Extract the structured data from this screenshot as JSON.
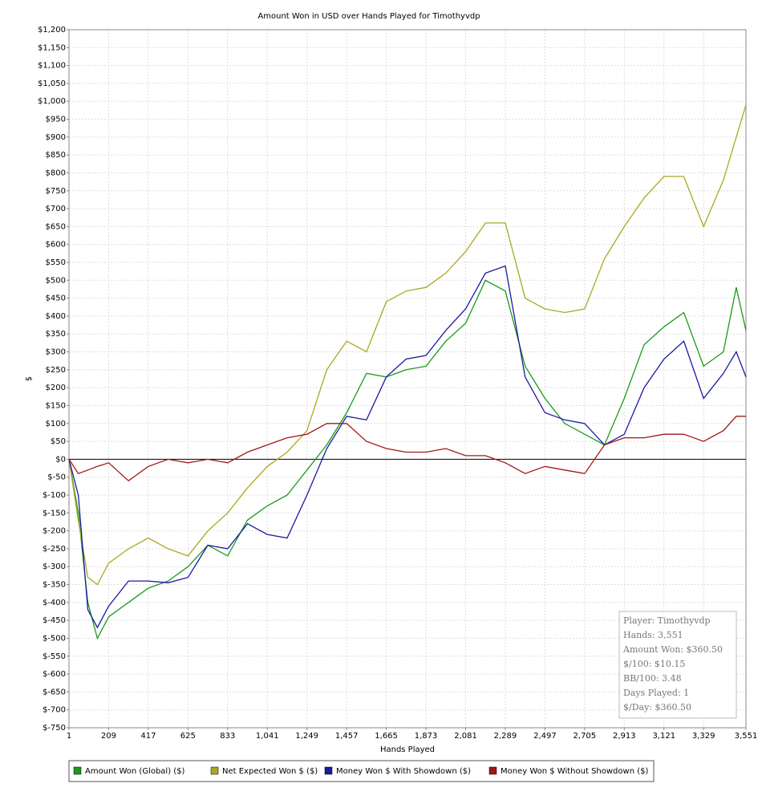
{
  "chart_data": {
    "type": "line",
    "title": "Amount Won in USD over Hands Played for Timothyvdp",
    "x_label": "Hands Played",
    "y_label": "$",
    "x": [
      1,
      50,
      100,
      150,
      209,
      313,
      417,
      521,
      625,
      729,
      833,
      937,
      1041,
      1145,
      1249,
      1353,
      1457,
      1561,
      1665,
      1769,
      1873,
      1977,
      2081,
      2185,
      2289,
      2393,
      2497,
      2601,
      2705,
      2809,
      2913,
      3017,
      3121,
      3225,
      3329,
      3433,
      3500,
      3551
    ],
    "series": [
      {
        "name": "Amount Won (Global) ($)",
        "color": "#1a9a1a",
        "values": [
          0,
          -150,
          -400,
          -500,
          -440,
          -400,
          -360,
          -340,
          -300,
          -240,
          -270,
          -170,
          -130,
          -100,
          -30,
          40,
          130,
          240,
          230,
          250,
          260,
          330,
          380,
          500,
          470,
          260,
          170,
          100,
          70,
          40,
          170,
          320,
          370,
          410,
          260,
          300,
          480,
          360
        ]
      },
      {
        "name": "Net Expected Won $ ($)",
        "color": "#aaa820",
        "values": [
          0,
          -170,
          -330,
          -350,
          -290,
          -250,
          -220,
          -250,
          -270,
          -200,
          -150,
          -80,
          -20,
          20,
          80,
          250,
          330,
          300,
          440,
          470,
          480,
          520,
          580,
          660,
          660,
          450,
          420,
          410,
          420,
          560,
          650,
          730,
          790,
          790,
          650,
          780,
          900,
          990
        ]
      },
      {
        "name": "Money Won $ With Showdown ($)",
        "color": "#1a1aa0",
        "values": [
          0,
          -100,
          -420,
          -470,
          -410,
          -340,
          -340,
          -345,
          -330,
          -240,
          -250,
          -180,
          -210,
          -220,
          -100,
          30,
          120,
          110,
          230,
          280,
          290,
          360,
          420,
          520,
          540,
          230,
          130,
          110,
          100,
          40,
          70,
          200,
          280,
          330,
          170,
          240,
          300,
          230
        ]
      },
      {
        "name": "Money Won $ Without Showdown ($)",
        "color": "#a01818",
        "values": [
          0,
          -40,
          -30,
          -20,
          -10,
          -60,
          -20,
          0,
          -10,
          0,
          -10,
          20,
          40,
          60,
          70,
          100,
          100,
          50,
          30,
          20,
          20,
          30,
          10,
          10,
          -10,
          -40,
          -20,
          -30,
          -40,
          40,
          60,
          60,
          70,
          70,
          50,
          80,
          120,
          120
        ]
      }
    ],
    "xlim": [
      1,
      3551
    ],
    "xticks": [
      1,
      209,
      417,
      625,
      833,
      {
        "value": 1041,
        "label": "1,041"
      },
      {
        "value": 1249,
        "label": "1,249"
      },
      {
        "value": 1457,
        "label": "1,457"
      },
      {
        "value": 1665,
        "label": "1,665"
      },
      {
        "value": 1873,
        "label": "1,873"
      },
      {
        "value": 2081,
        "label": "2,081"
      },
      {
        "value": 2289,
        "label": "2,289"
      },
      {
        "value": 2497,
        "label": "2,497"
      },
      {
        "value": 2705,
        "label": "2,705"
      },
      {
        "value": 2913,
        "label": "2,913"
      },
      {
        "value": 3121,
        "label": "3,121"
      },
      {
        "value": 3329,
        "label": "3,329"
      },
      {
        "value": 3551,
        "label": "3,551"
      }
    ],
    "ylim": [
      -750,
      1200
    ],
    "yticks": [
      {
        "value": -750,
        "label": "$-750"
      },
      {
        "value": -700,
        "label": "$-700"
      },
      {
        "value": -650,
        "label": "$-650"
      },
      {
        "value": -600,
        "label": "$-600"
      },
      {
        "value": -550,
        "label": "$-550"
      },
      {
        "value": -500,
        "label": "$-500"
      },
      {
        "value": -450,
        "label": "$-450"
      },
      {
        "value": -400,
        "label": "$-400"
      },
      {
        "value": -350,
        "label": "$-350"
      },
      {
        "value": -300,
        "label": "$-300"
      },
      {
        "value": -250,
        "label": "$-250"
      },
      {
        "value": -200,
        "label": "$-200"
      },
      {
        "value": -150,
        "label": "$-150"
      },
      {
        "value": -100,
        "label": "$-100"
      },
      {
        "value": -50,
        "label": "$-50"
      },
      {
        "value": 0,
        "label": "$0"
      },
      {
        "value": 50,
        "label": "$50"
      },
      {
        "value": 100,
        "label": "$100"
      },
      {
        "value": 150,
        "label": "$150"
      },
      {
        "value": 200,
        "label": "$200"
      },
      {
        "value": 250,
        "label": "$250"
      },
      {
        "value": 300,
        "label": "$300"
      },
      {
        "value": 350,
        "label": "$350"
      },
      {
        "value": 400,
        "label": "$400"
      },
      {
        "value": 450,
        "label": "$450"
      },
      {
        "value": 500,
        "label": "$500"
      },
      {
        "value": 550,
        "label": "$550"
      },
      {
        "value": 600,
        "label": "$600"
      },
      {
        "value": 650,
        "label": "$650"
      },
      {
        "value": 700,
        "label": "$700"
      },
      {
        "value": 750,
        "label": "$750"
      },
      {
        "value": 800,
        "label": "$800"
      },
      {
        "value": 850,
        "label": "$850"
      },
      {
        "value": 900,
        "label": "$900"
      },
      {
        "value": 950,
        "label": "$950"
      },
      {
        "value": 1000,
        "label": "$1,000"
      },
      {
        "value": 1050,
        "label": "$1,050"
      },
      {
        "value": 1100,
        "label": "$1,100"
      },
      {
        "value": 1150,
        "label": "$1,150"
      },
      {
        "value": 1200,
        "label": "$1,200"
      }
    ],
    "grid": true,
    "stats": [
      "Player: Timothyvdp",
      "Hands: 3,551",
      "Amount Won: $360.50",
      "$/100: $10.15",
      "BB/100: 3.48",
      "Days Played: 1",
      "$/Day: $360.50"
    ]
  }
}
